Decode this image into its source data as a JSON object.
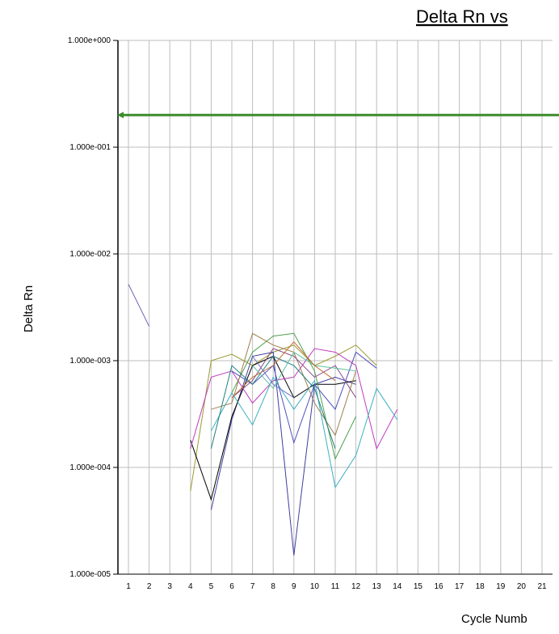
{
  "chart_data": {
    "type": "line",
    "title": "Delta Rn vs",
    "xlabel": "Cycle Numb",
    "ylabel": "Delta Rn",
    "yscale": "log",
    "ylim": [
      1e-05,
      1
    ],
    "xlim": [
      0.5,
      21.5
    ],
    "grid": true,
    "y_ticks": [
      "1.000e+000",
      "1.000e-001",
      "1.000e-002",
      "1.000e-003",
      "1.000e-004",
      "1.000e-005"
    ],
    "x_ticks": [
      "1",
      "2",
      "3",
      "4",
      "5",
      "6",
      "7",
      "8",
      "9",
      "10",
      "11",
      "12",
      "13",
      "14",
      "15",
      "16",
      "17",
      "18",
      "19",
      "20",
      "21"
    ],
    "threshold": {
      "value": 0.2,
      "color": "#3c8c2c"
    },
    "series": [
      {
        "color": "#7a5fb8",
        "points": [
          [
            1,
            0.0052
          ],
          [
            2,
            0.0021
          ]
        ]
      },
      {
        "color": "#9b9b30",
        "points": [
          [
            4,
            6e-05
          ],
          [
            5,
            0.001
          ],
          [
            6,
            0.00115
          ],
          [
            7,
            0.0009
          ],
          [
            8,
            0.0012
          ],
          [
            9,
            0.0014
          ],
          [
            10,
            0.0009
          ],
          [
            11,
            0.0011
          ],
          [
            12,
            0.0014
          ],
          [
            13,
            0.0009
          ]
        ]
      },
      {
        "color": "#3f3fa0",
        "points": [
          [
            5,
            4e-05
          ],
          [
            6,
            0.00028
          ],
          [
            7,
            0.0011
          ],
          [
            8,
            0.0012
          ],
          [
            9,
            1.5e-05
          ],
          [
            10,
            0.0006
          ],
          [
            11,
            0.0007
          ],
          [
            12,
            0.0006
          ]
        ]
      },
      {
        "color": "#000000",
        "points": [
          [
            4,
            0.00018
          ],
          [
            5,
            5e-05
          ],
          [
            6,
            0.0003
          ],
          [
            7,
            0.0009
          ],
          [
            8,
            0.0011
          ],
          [
            9,
            0.00045
          ],
          [
            10,
            0.0006
          ],
          [
            11,
            0.0006
          ],
          [
            12,
            0.00065
          ]
        ]
      },
      {
        "color": "#c03cc0",
        "points": [
          [
            4,
            0.00015
          ],
          [
            5,
            0.0007
          ],
          [
            6,
            0.0008
          ],
          [
            7,
            0.0004
          ],
          [
            8,
            0.00065
          ],
          [
            9,
            0.0007
          ],
          [
            10,
            0.0013
          ],
          [
            11,
            0.0012
          ],
          [
            12,
            0.0009
          ],
          [
            13,
            0.00015
          ],
          [
            14,
            0.00035
          ]
        ]
      },
      {
        "color": "#3cb0c0",
        "points": [
          [
            5,
            0.00022
          ],
          [
            6,
            0.0005
          ],
          [
            7,
            0.00025
          ],
          [
            8,
            0.0007
          ],
          [
            9,
            0.00035
          ],
          [
            10,
            0.00065
          ],
          [
            11,
            6.5e-05
          ],
          [
            12,
            0.00013
          ],
          [
            13,
            0.00055
          ],
          [
            14,
            0.00028
          ]
        ]
      },
      {
        "color": "#50a050",
        "points": [
          [
            6,
            0.0005
          ],
          [
            7,
            0.0012
          ],
          [
            8,
            0.0017
          ],
          [
            9,
            0.0018
          ],
          [
            10,
            0.0008
          ],
          [
            11,
            0.00012
          ],
          [
            12,
            0.0003
          ]
        ]
      },
      {
        "color": "#a08050",
        "points": [
          [
            5,
            0.00035
          ],
          [
            6,
            0.0004
          ],
          [
            7,
            0.0018
          ],
          [
            8,
            0.0014
          ],
          [
            9,
            0.0012
          ],
          [
            10,
            0.0004
          ],
          [
            11,
            0.0002
          ],
          [
            12,
            0.0008
          ]
        ]
      },
      {
        "color": "#5050c0",
        "points": [
          [
            6,
            0.0008
          ],
          [
            7,
            0.0006
          ],
          [
            8,
            0.0009
          ],
          [
            9,
            0.00017
          ],
          [
            10,
            0.0006
          ],
          [
            11,
            0.00035
          ],
          [
            12,
            0.0012
          ],
          [
            13,
            0.00085
          ]
        ]
      },
      {
        "color": "#208080",
        "points": [
          [
            5,
            0.00015
          ],
          [
            6,
            0.0009
          ],
          [
            7,
            0.0006
          ],
          [
            8,
            0.0011
          ],
          [
            9,
            0.0009
          ],
          [
            10,
            0.00055
          ],
          [
            11,
            0.00015
          ]
        ]
      },
      {
        "color": "#8a4a8a",
        "points": [
          [
            6,
            0.00045
          ],
          [
            7,
            0.00065
          ],
          [
            8,
            0.0013
          ],
          [
            9,
            0.0011
          ],
          [
            10,
            0.0007
          ],
          [
            11,
            0.0009
          ],
          [
            12,
            0.00045
          ]
        ]
      },
      {
        "color": "#60c0a0",
        "points": [
          [
            7,
            0.0009
          ],
          [
            8,
            0.00055
          ],
          [
            9,
            0.0012
          ],
          [
            10,
            0.0009
          ],
          [
            11,
            0.00085
          ],
          [
            12,
            0.0008
          ]
        ]
      },
      {
        "color": "#c07030",
        "points": [
          [
            6,
            0.00045
          ],
          [
            7,
            0.0007
          ],
          [
            8,
            0.0009
          ],
          [
            9,
            0.0015
          ],
          [
            10,
            0.0009
          ],
          [
            11,
            0.00065
          ]
        ]
      },
      {
        "color": "#7070d0",
        "points": [
          [
            7,
            0.0011
          ],
          [
            8,
            0.0006
          ],
          [
            9,
            0.00045
          ]
        ]
      }
    ]
  }
}
